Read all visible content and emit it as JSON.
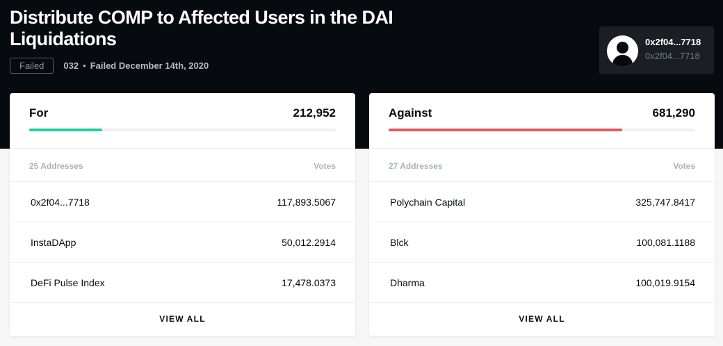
{
  "proposal": {
    "title": "Distribute COMP to Affected Users in the DAI Liquidations",
    "status": "Failed",
    "number": "032",
    "separator": "•",
    "status_date": "Failed December 14th, 2020"
  },
  "proposer": {
    "name": "0x2f04...7718",
    "address": "0x2f04...7718",
    "icon": "user-avatar-icon"
  },
  "for": {
    "label": "For",
    "total": "212,952",
    "progress": 0.238,
    "color": "#1ed09e",
    "addresses": "25 Addresses",
    "votes_header": "Votes",
    "rows": [
      {
        "name": "0x2f04...7718",
        "votes": "117,893.5067"
      },
      {
        "name": "InstaDApp",
        "votes": "50,012.2914"
      },
      {
        "name": "DeFi Pulse Index",
        "votes": "17,478.0373"
      }
    ],
    "view_all": "VIEW ALL"
  },
  "against": {
    "label": "Against",
    "total": "681,290",
    "progress": 0.762,
    "color": "#e0595b",
    "addresses": "27 Addresses",
    "votes_header": "Votes",
    "rows": [
      {
        "name": "Polychain Capital",
        "votes": "325,747.8417"
      },
      {
        "name": "Blck",
        "votes": "100,081.1188"
      },
      {
        "name": "Dharma",
        "votes": "100,019.9154"
      }
    ],
    "view_all": "VIEW ALL"
  }
}
